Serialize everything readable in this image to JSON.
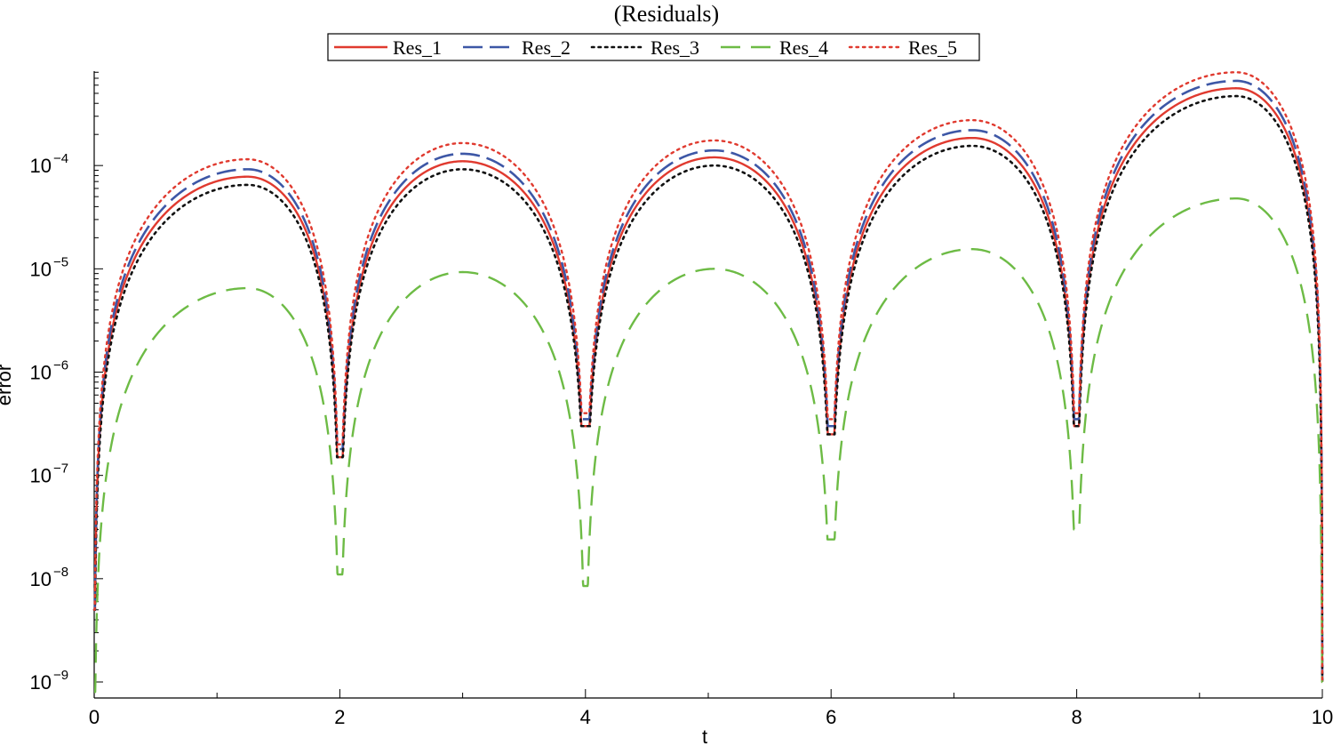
{
  "chart_data": {
    "type": "line",
    "title": "(Residuals)",
    "xlabel": "t",
    "ylabel": "error",
    "xlim": [
      0,
      10
    ],
    "ylim": [
      1e-09,
      0.001
    ],
    "y_scale": "log",
    "x_ticks": [
      "0",
      "2",
      "4",
      "6",
      "8",
      "10"
    ],
    "y_ticks": [
      {
        "value": 1e-09,
        "mantissa": "10",
        "exponent": "−9"
      },
      {
        "value": 1e-08,
        "mantissa": "10",
        "exponent": "−8"
      },
      {
        "value": 1e-07,
        "mantissa": "10",
        "exponent": "−7"
      },
      {
        "value": 1e-06,
        "mantissa": "10",
        "exponent": "−6"
      },
      {
        "value": 1e-05,
        "mantissa": "10",
        "exponent": "−5"
      },
      {
        "value": 0.0001,
        "mantissa": "10",
        "exponent": "−4"
      }
    ],
    "legend_position": "top",
    "grid": false,
    "series": [
      {
        "name": "Res_1",
        "color": "#e03a2f",
        "style": "solid",
        "peaks": [
          7.8e-05,
          0.00011,
          0.00012,
          0.000185,
          0.00056
        ],
        "peak_t": [
          1.25,
          3.0,
          5.05,
          7.15,
          9.3
        ],
        "minima": [
          1.5e-07,
          3e-07,
          2.5e-07,
          3e-07,
          1e-09
        ]
      },
      {
        "name": "Res_2",
        "color": "#3d57a6",
        "style": "dashed",
        "peaks": [
          9.2e-05,
          0.00013,
          0.00014,
          0.00022,
          0.00066
        ],
        "peak_t": [
          1.25,
          3.0,
          5.05,
          7.15,
          9.3
        ],
        "minima": [
          1.8e-07,
          3.5e-07,
          3e-07,
          3.5e-07,
          1e-09
        ]
      },
      {
        "name": "Res_3",
        "color": "#111111",
        "style": "dotted",
        "peaks": [
          6.5e-05,
          9.2e-05,
          0.0001,
          0.000155,
          0.00047
        ],
        "peak_t": [
          1.25,
          3.0,
          5.05,
          7.15,
          9.3
        ],
        "minima": [
          1.5e-07,
          3e-07,
          2.5e-07,
          3e-07,
          1e-09
        ]
      },
      {
        "name": "Res_4",
        "color": "#6dbb45",
        "style": "longdash",
        "peaks": [
          6.5e-06,
          9.3e-06,
          1e-05,
          1.55e-05,
          4.8e-05
        ],
        "peak_t": [
          1.25,
          3.0,
          5.05,
          7.15,
          9.3
        ],
        "minima": [
          1.1e-08,
          8.5e-09,
          2.4e-08,
          3e-08,
          1e-09
        ]
      },
      {
        "name": "Res_5",
        "color": "#e03a2f",
        "style": "fine-dotted",
        "peaks": [
          0.000115,
          0.000165,
          0.000175,
          0.000275,
          0.0008
        ],
        "peak_t": [
          1.25,
          3.0,
          5.05,
          7.15,
          9.3
        ],
        "minima": [
          2e-07,
          4e-07,
          3.5e-07,
          4e-07,
          1e-09
        ]
      }
    ],
    "x_start_values": [
      5e-09,
      5e-09,
      5e-09,
      8e-10,
      5e-09
    ]
  }
}
